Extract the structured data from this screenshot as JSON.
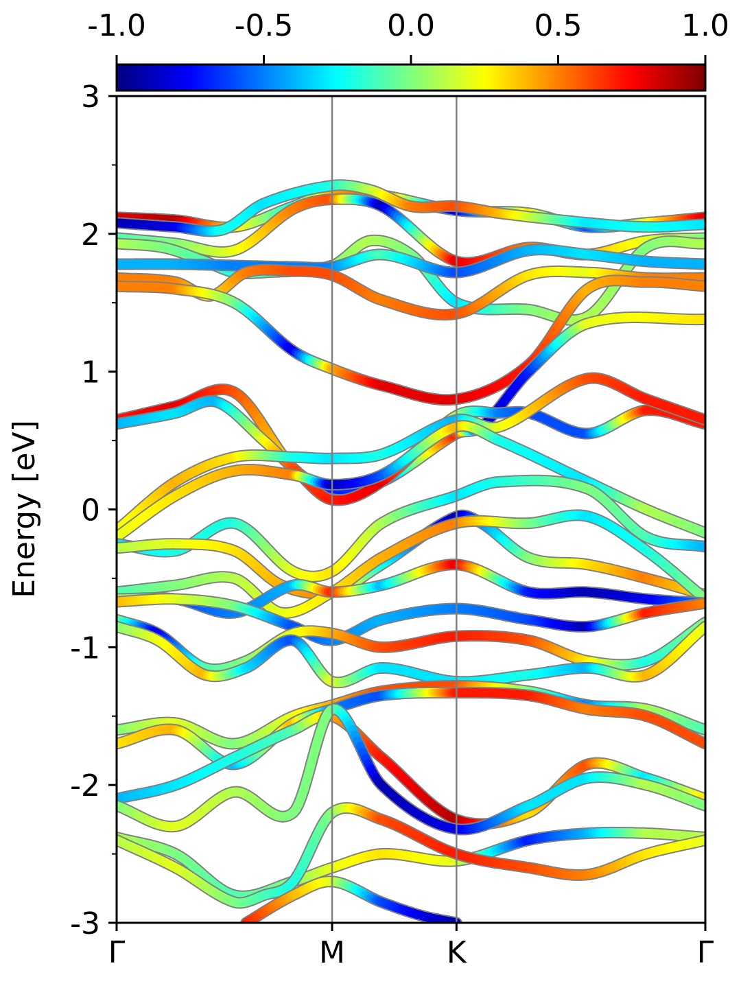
{
  "chart_data": {
    "type": "line",
    "ylabel": "Energy [eV]",
    "ylim": [
      -3,
      3
    ],
    "y_ticks": [
      {
        "value": 3,
        "label": "3"
      },
      {
        "value": 2,
        "label": "2"
      },
      {
        "value": 1,
        "label": "1"
      },
      {
        "value": 0,
        "label": "0"
      },
      {
        "value": -1,
        "label": "-1"
      },
      {
        "value": -2,
        "label": "-2"
      },
      {
        "value": -3,
        "label": "-3"
      }
    ],
    "y_minor_ticks": [
      2.5,
      1.5,
      0.5,
      -0.5,
      -1.5,
      -2.5
    ],
    "k_path": [
      {
        "label": "Γ",
        "k": 0
      },
      {
        "label": "M",
        "k": 0.366
      },
      {
        "label": "K",
        "k": 0.5773
      },
      {
        "label": "Γ",
        "k": 1.0
      }
    ],
    "colorbar": {
      "range": [
        -1.0,
        1.0
      ],
      "ticks": [
        {
          "value": -1.0,
          "label": "-1.0"
        },
        {
          "value": -0.5,
          "label": "-0.5"
        },
        {
          "value": 0.0,
          "label": "0.0"
        },
        {
          "value": 0.5,
          "label": "0.5"
        },
        {
          "value": 1.0,
          "label": "1.0"
        }
      ],
      "colormap": [
        "#00007f",
        "#0000ff",
        "#007fff",
        "#00ffff",
        "#7fff7f",
        "#ffff00",
        "#ff7f00",
        "#ff0000",
        "#7f0000"
      ]
    },
    "bands": [
      {
        "k": [
          0,
          0.1,
          0.2,
          0.3,
          0.366,
          0.45,
          0.5773,
          0.7,
          0.8,
          0.9,
          1.0
        ],
        "E": [
          2.12,
          2.1,
          2.05,
          2.2,
          2.3,
          2.28,
          2.17,
          2.15,
          2.05,
          2.08,
          2.12
        ],
        "c": [
          0.8,
          0.9,
          0.3,
          -0.2,
          0.4,
          0.6,
          -0.8,
          0.3,
          -0.6,
          0.2,
          0.8
        ]
      },
      {
        "k": [
          0,
          0.1,
          0.18,
          0.25,
          0.366,
          0.43,
          0.5,
          0.5773,
          0.65,
          0.8,
          0.9,
          1.0
        ],
        "E": [
          2.08,
          2.05,
          2.03,
          2.22,
          2.35,
          2.32,
          2.2,
          2.2,
          2.15,
          2.08,
          2.05,
          2.07
        ],
        "c": [
          -0.9,
          -0.8,
          -0.2,
          -0.3,
          -0.2,
          0.1,
          0.5,
          0.6,
          0.4,
          -0.3,
          -0.2,
          -0.3
        ]
      },
      {
        "k": [
          0,
          0.1,
          0.2,
          0.3,
          0.366,
          0.45,
          0.5773,
          0.7,
          0.8,
          0.9,
          1.0
        ],
        "E": [
          1.97,
          1.93,
          1.88,
          2.18,
          2.25,
          2.2,
          1.8,
          1.9,
          1.85,
          1.95,
          1.97
        ],
        "c": [
          -0.1,
          0.0,
          0.2,
          0.5,
          0.6,
          -0.9,
          0.8,
          0.5,
          0.4,
          0.2,
          0.0
        ]
      },
      {
        "k": [
          0,
          0.08,
          0.15,
          0.2,
          0.25,
          0.366,
          0.43,
          0.5,
          0.5773,
          0.7,
          0.8,
          0.9,
          1.0
        ],
        "E": [
          1.93,
          1.9,
          1.8,
          1.72,
          1.72,
          1.77,
          1.95,
          1.85,
          1.5,
          1.45,
          1.4,
          1.9,
          1.93
        ],
        "c": [
          0.1,
          0.0,
          -0.1,
          -0.2,
          -0.1,
          0.0,
          0.1,
          0.0,
          -0.3,
          0.0,
          0.1,
          0.0,
          0.1
        ]
      },
      {
        "k": [
          0,
          0.1,
          0.2,
          0.3,
          0.366,
          0.45,
          0.5773,
          0.7,
          0.8,
          0.9,
          1.0
        ],
        "E": [
          1.78,
          1.78,
          1.77,
          1.76,
          1.76,
          1.85,
          1.72,
          1.88,
          1.85,
          1.8,
          1.78
        ],
        "c": [
          -0.4,
          -0.4,
          -0.5,
          -0.5,
          -0.5,
          -0.1,
          -0.6,
          -0.4,
          -0.3,
          -0.4,
          -0.4
        ]
      },
      {
        "k": [
          0,
          0.1,
          0.16,
          0.22,
          0.3,
          0.366,
          0.45,
          0.5773,
          0.7,
          0.8,
          0.9,
          1.0
        ],
        "E": [
          1.68,
          1.65,
          1.55,
          1.72,
          1.73,
          1.7,
          1.52,
          1.42,
          1.7,
          1.72,
          1.68,
          1.68
        ],
        "c": [
          0.5,
          0.5,
          0.3,
          0.5,
          0.6,
          0.6,
          0.5,
          0.6,
          0.3,
          0.2,
          0.5,
          0.5
        ]
      },
      {
        "k": [
          0,
          0.1,
          0.2,
          0.3,
          0.366,
          0.45,
          0.5773,
          0.7,
          0.8,
          0.9,
          1.0
        ],
        "E": [
          1.62,
          1.6,
          1.5,
          1.15,
          1.02,
          0.9,
          0.8,
          1.05,
          1.6,
          1.65,
          1.62
        ],
        "c": [
          0.5,
          0.5,
          0.0,
          -0.8,
          0.4,
          0.8,
          0.8,
          0.7,
          0.4,
          0.5,
          0.5
        ]
      },
      {
        "k": [
          0,
          0.1,
          0.2,
          0.3,
          0.366,
          0.45,
          0.5773,
          0.62,
          0.7,
          0.8,
          1.0
        ],
        "E": [
          0.65,
          0.75,
          0.85,
          0.3,
          0.15,
          0.2,
          0.55,
          0.6,
          1.0,
          1.35,
          1.38
        ],
        "c": [
          0.7,
          0.8,
          0.6,
          0.3,
          -0.7,
          -0.6,
          0.7,
          -0.9,
          -0.7,
          0.2,
          0.3
        ]
      },
      {
        "k": [
          0,
          0.1,
          0.17,
          0.25,
          0.3,
          0.366,
          0.45,
          0.5773,
          0.65,
          0.7,
          0.8,
          0.9,
          1.0
        ],
        "E": [
          0.62,
          0.7,
          0.78,
          0.5,
          0.3,
          0.07,
          0.2,
          0.68,
          0.7,
          0.7,
          0.55,
          0.72,
          0.62
        ],
        "c": [
          -0.4,
          -0.3,
          -0.4,
          0.2,
          0.6,
          0.7,
          0.8,
          0.1,
          -0.5,
          -0.6,
          -0.6,
          0.7,
          0.7
        ]
      },
      {
        "k": [
          0,
          0.1,
          0.2,
          0.3,
          0.366,
          0.45,
          0.5773,
          0.65,
          0.8,
          0.9,
          1.0
        ],
        "E": [
          -0.15,
          0.2,
          0.38,
          0.38,
          0.37,
          0.4,
          0.65,
          0.6,
          0.95,
          0.8,
          0.65
        ],
        "c": [
          0.2,
          0.4,
          0.3,
          -0.2,
          -0.3,
          -0.2,
          -0.4,
          0.2,
          0.6,
          0.7,
          0.7
        ]
      },
      {
        "k": [
          0,
          0.1,
          0.2,
          0.3,
          0.366,
          0.45,
          0.5773,
          0.65,
          0.8,
          0.9,
          1.0
        ],
        "E": [
          -0.2,
          0.1,
          0.28,
          0.25,
          0.18,
          0.25,
          0.6,
          0.5,
          0.2,
          0.0,
          -0.17
        ],
        "c": [
          0.2,
          0.3,
          0.4,
          0.5,
          -0.9,
          -0.6,
          0.4,
          -0.2,
          -0.3,
          0.1,
          0.0
        ]
      },
      {
        "k": [
          0,
          0.1,
          0.2,
          0.3,
          0.366,
          0.45,
          0.5773,
          0.65,
          0.8,
          0.9,
          1.0
        ],
        "E": [
          -0.25,
          -0.3,
          -0.1,
          -0.45,
          -0.45,
          -0.1,
          0.1,
          0.2,
          0.15,
          -0.2,
          -0.27
        ],
        "c": [
          -0.3,
          -0.2,
          -0.2,
          0.2,
          0.3,
          0.1,
          -0.3,
          -0.2,
          0.0,
          -0.1,
          -0.4
        ]
      },
      {
        "k": [
          0,
          0.1,
          0.2,
          0.28,
          0.366,
          0.45,
          0.5773,
          0.62,
          0.7,
          0.8,
          0.9,
          1.0
        ],
        "E": [
          -0.28,
          -0.25,
          -0.3,
          -0.55,
          -0.6,
          -0.4,
          -0.05,
          -0.1,
          -0.35,
          -0.4,
          -0.5,
          -0.62
        ],
        "c": [
          0.1,
          0.2,
          0.3,
          0.4,
          0.5,
          -0.2,
          -0.9,
          -0.5,
          0.0,
          0.3,
          0.5,
          0.3
        ]
      },
      {
        "k": [
          0,
          0.1,
          0.2,
          0.28,
          0.366,
          0.45,
          0.5773,
          0.7,
          0.8,
          0.9,
          1.0
        ],
        "E": [
          -0.6,
          -0.55,
          -0.5,
          -0.75,
          -0.6,
          -0.35,
          -0.1,
          -0.1,
          -0.05,
          -0.3,
          -0.65
        ],
        "c": [
          -0.1,
          0.0,
          0.1,
          0.2,
          0.3,
          0.4,
          0.5,
          0.0,
          -0.3,
          -0.2,
          0.0
        ]
      },
      {
        "k": [
          0,
          0.1,
          0.2,
          0.3,
          0.366,
          0.45,
          0.5773,
          0.7,
          0.8,
          0.9,
          1.0
        ],
        "E": [
          -0.65,
          -0.65,
          -0.75,
          -0.55,
          -0.6,
          -0.55,
          -0.4,
          -0.6,
          -0.6,
          -0.65,
          -0.68
        ],
        "c": [
          0.2,
          -0.6,
          -0.5,
          -0.4,
          0.7,
          -0.4,
          0.8,
          -0.7,
          -0.9,
          -0.8,
          -0.5
        ]
      },
      {
        "k": [
          0,
          0.1,
          0.2,
          0.3,
          0.366,
          0.45,
          0.5773,
          0.7,
          0.8,
          0.9,
          1.0
        ],
        "E": [
          -0.67,
          -0.65,
          -0.7,
          -0.85,
          -0.95,
          -0.8,
          -0.72,
          -0.8,
          -0.85,
          -0.75,
          -0.68
        ],
        "c": [
          0.4,
          0.2,
          0.0,
          -0.6,
          -0.5,
          -0.4,
          -0.5,
          -0.6,
          -0.9,
          0.7,
          0.5
        ]
      },
      {
        "k": [
          0,
          0.07,
          0.15,
          0.22,
          0.3,
          0.366,
          0.45,
          0.5773,
          0.7,
          0.8,
          0.9,
          1.0
        ],
        "E": [
          -0.8,
          -0.9,
          -1.15,
          -1.1,
          -0.9,
          -0.9,
          -1.0,
          -0.92,
          -0.95,
          -1.1,
          -1.1,
          -0.82
        ],
        "c": [
          0.0,
          -0.8,
          -0.1,
          0.0,
          0.2,
          0.4,
          0.6,
          0.7,
          0.6,
          0.3,
          -0.2,
          0.0
        ]
      },
      {
        "k": [
          0,
          0.07,
          0.15,
          0.22,
          0.3,
          0.366,
          0.45,
          0.5773,
          0.7,
          0.8,
          0.9,
          1.0
        ],
        "E": [
          -0.85,
          -0.95,
          -1.2,
          -1.15,
          -0.95,
          -1.25,
          -1.15,
          -1.25,
          -1.2,
          -1.15,
          -1.2,
          -0.85
        ],
        "c": [
          0.0,
          0.2,
          0.4,
          -0.3,
          -0.6,
          0.2,
          -0.3,
          -0.3,
          -0.2,
          -0.4,
          0.4,
          0.2
        ]
      },
      {
        "k": [
          0,
          0.1,
          0.2,
          0.3,
          0.366,
          0.45,
          0.5773,
          0.7,
          0.8,
          0.9,
          1.0
        ],
        "E": [
          -1.6,
          -1.55,
          -1.7,
          -1.5,
          -1.42,
          -1.32,
          -1.28,
          -1.32,
          -1.42,
          -1.45,
          -1.6
        ],
        "c": [
          0.0,
          0.2,
          0.0,
          0.2,
          0.4,
          0.6,
          0.6,
          0.0,
          -0.5,
          0.1,
          -0.1
        ]
      },
      {
        "k": [
          0,
          0.1,
          0.2,
          0.3,
          0.366,
          0.45,
          0.5773,
          0.7,
          0.8,
          0.9,
          1.0
        ],
        "E": [
          -1.7,
          -1.6,
          -1.85,
          -1.55,
          -1.45,
          -1.35,
          -1.33,
          -1.35,
          -1.45,
          -1.5,
          -1.7
        ],
        "c": [
          0.3,
          0.4,
          -0.4,
          0.4,
          -0.5,
          -0.6,
          0.7,
          0.7,
          0.5,
          0.6,
          0.6
        ]
      },
      {
        "k": [
          0,
          0.1,
          0.2,
          0.3,
          0.366,
          0.45,
          0.5773,
          0.7,
          0.8,
          0.9,
          1.0
        ],
        "E": [
          -2.1,
          -2.0,
          -1.8,
          -1.6,
          -1.5,
          -1.8,
          -2.25,
          -2.2,
          -1.85,
          -1.95,
          -2.1
        ],
        "c": [
          -0.4,
          -0.3,
          -0.2,
          -0.1,
          0.4,
          0.7,
          0.9,
          0.3,
          0.6,
          -0.3,
          0.3
        ]
      },
      {
        "k": [
          0,
          0.1,
          0.2,
          0.3,
          0.366,
          0.45,
          0.5773,
          0.7,
          0.8,
          0.9,
          1.0
        ],
        "E": [
          -2.15,
          -2.3,
          -2.05,
          -2.2,
          -1.45,
          -2.0,
          -2.32,
          -2.15,
          -1.95,
          -2.0,
          -2.15
        ],
        "c": [
          0.0,
          0.2,
          0.1,
          0.0,
          0.0,
          -0.9,
          -0.8,
          -0.3,
          -0.3,
          0.1,
          0.0
        ]
      },
      {
        "k": [
          0,
          0.1,
          0.2,
          0.3,
          0.366,
          0.45,
          0.5773,
          0.7,
          0.8,
          0.9,
          1.0
        ],
        "E": [
          -2.38,
          -2.5,
          -2.8,
          -2.7,
          -2.6,
          -2.5,
          -2.55,
          -2.4,
          -2.35,
          -2.35,
          -2.38
        ],
        "c": [
          0.1,
          0.0,
          -0.1,
          0.0,
          0.2,
          0.3,
          0.2,
          -0.7,
          -0.4,
          0.1,
          0.1
        ]
      },
      {
        "k": [
          0,
          0.1,
          0.2,
          0.25,
          0.3,
          0.366,
          0.45,
          0.5773,
          0.7,
          0.8,
          0.9,
          1.0
        ],
        "E": [
          -2.4,
          -2.6,
          -2.85,
          -2.8,
          -2.7,
          -2.2,
          -2.25,
          -2.5,
          -2.6,
          -2.65,
          -2.5,
          -2.4
        ],
        "c": [
          0.1,
          0.2,
          0.0,
          -0.1,
          -0.2,
          0.0,
          0.6,
          0.7,
          0.6,
          0.5,
          0.3,
          0.2
        ]
      },
      {
        "k": [
          0.22,
          0.3,
          0.366,
          0.45,
          0.52,
          0.5773
        ],
        "E": [
          -3.0,
          -2.8,
          -2.7,
          -2.85,
          -2.95,
          -3.0
        ],
        "c": [
          0.7,
          0.4,
          0.2,
          -0.6,
          -0.8,
          -0.9
        ]
      }
    ]
  }
}
